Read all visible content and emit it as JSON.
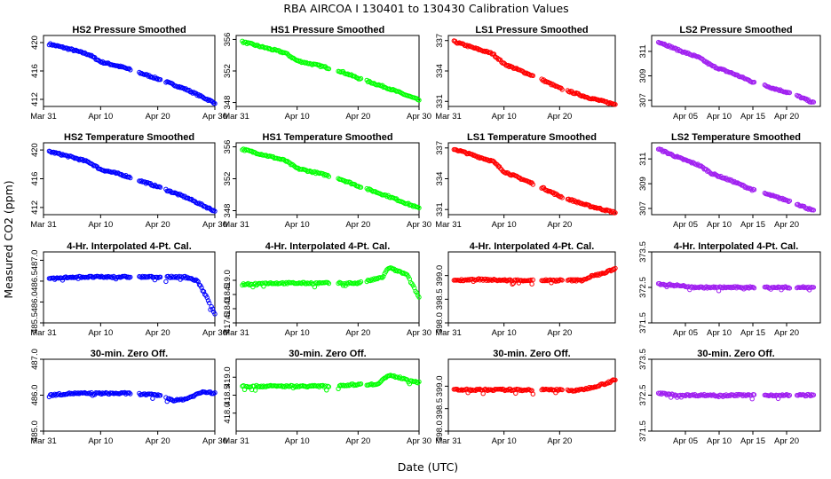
{
  "figure": {
    "title": "RBA   AIRCOA I   130401 to 130430   Calibration Values",
    "xlabel": "Date (UTC)",
    "ylabel": "Measured CO2 (ppm)"
  },
  "chart_data": [
    {
      "type": "scatter",
      "title": "HS2 Pressure Smoothed",
      "color": "#0000ff",
      "marker": "open-circle",
      "xlim": [
        "2013-03-31",
        "2013-04-30"
      ],
      "xticks": [
        "Mar 31",
        "Apr 10",
        "Apr 20",
        "Apr 30"
      ],
      "ylim": [
        411,
        421
      ],
      "yticks": [
        "412",
        "416",
        "420"
      ],
      "series": [
        {
          "x": [
            "2013-04-01",
            "2013-04-05",
            "2013-04-08",
            "2013-04-10",
            "2013-04-14",
            "2013-04-17",
            "2013-04-20",
            "2013-04-25",
            "2013-04-30"
          ],
          "y": [
            419.8,
            419.0,
            418.3,
            417.3,
            416.5,
            415.7,
            414.9,
            413.4,
            411.5
          ]
        }
      ]
    },
    {
      "type": "scatter",
      "title": "HS1 Pressure Smoothed",
      "color": "#00ff00",
      "marker": "open-circle",
      "xlim": [
        "2013-03-31",
        "2013-04-30"
      ],
      "xticks": [
        "Mar 31",
        "Apr 10",
        "Apr 20",
        "Apr 30"
      ],
      "ylim": [
        347.5,
        356.5
      ],
      "yticks": [
        "348",
        "352",
        "356"
      ],
      "series": [
        {
          "x": [
            "2013-04-01",
            "2013-04-05",
            "2013-04-08",
            "2013-04-10",
            "2013-04-14",
            "2013-04-17",
            "2013-04-20",
            "2013-04-25",
            "2013-04-30"
          ],
          "y": [
            355.7,
            354.9,
            354.3,
            353.3,
            352.6,
            352.0,
            351.1,
            349.8,
            348.3
          ]
        }
      ]
    },
    {
      "type": "scatter",
      "title": "LS1 Pressure Smoothed",
      "color": "#ff0000",
      "marker": "open-circle",
      "xlim": [
        "2013-03-31",
        "2013-04-30"
      ],
      "xticks": [
        "Mar 31",
        "Apr 10",
        "Apr 20"
      ],
      "ylim": [
        330.5,
        337.5
      ],
      "yticks": [
        "331",
        "334",
        "337"
      ],
      "series": [
        {
          "x": [
            "2013-04-01",
            "2013-04-05",
            "2013-04-08",
            "2013-04-10",
            "2013-04-14",
            "2013-04-17",
            "2013-04-20",
            "2013-04-25",
            "2013-04-30"
          ],
          "y": [
            336.9,
            336.2,
            335.7,
            334.7,
            333.8,
            333.1,
            332.3,
            331.4,
            330.7
          ]
        }
      ]
    },
    {
      "type": "scatter",
      "title": "LS2 Pressure Smoothed",
      "color": "#a020f0",
      "marker": "open-circle",
      "xlim": [
        "2013-03-31",
        "2013-04-25"
      ],
      "xticks": [
        "Apr 05",
        "Apr 10",
        "Apr 15",
        "Apr 20"
      ],
      "ylim": [
        306.5,
        312.3
      ],
      "yticks": [
        "307",
        "309",
        "311"
      ],
      "series": [
        {
          "x": [
            "2013-04-01",
            "2013-04-04",
            "2013-04-07",
            "2013-04-09",
            "2013-04-12",
            "2013-04-15",
            "2013-04-18",
            "2013-04-21",
            "2013-04-24"
          ],
          "y": [
            311.8,
            311.1,
            310.5,
            309.8,
            309.2,
            308.5,
            308.0,
            307.5,
            306.8
          ]
        }
      ]
    },
    {
      "type": "scatter",
      "title": "HS2 Temperature Smoothed",
      "color": "#0000ff",
      "marker": "open-circle",
      "xlim": [
        "2013-03-31",
        "2013-04-30"
      ],
      "xticks": [
        "Mar 31",
        "Apr 10",
        "Apr 20",
        "Apr 30"
      ],
      "ylim": [
        411,
        421
      ],
      "yticks": [
        "412",
        "416",
        "420"
      ],
      "series": [
        {
          "x": [
            "2013-04-01",
            "2013-04-05",
            "2013-04-08",
            "2013-04-10",
            "2013-04-14",
            "2013-04-17",
            "2013-04-20",
            "2013-04-25",
            "2013-04-30"
          ],
          "y": [
            419.8,
            419.0,
            418.3,
            417.3,
            416.5,
            415.7,
            414.9,
            413.4,
            411.5
          ]
        }
      ]
    },
    {
      "type": "scatter",
      "title": "HS1 Temperature Smoothed",
      "color": "#00ff00",
      "marker": "open-circle",
      "xlim": [
        "2013-03-31",
        "2013-04-30"
      ],
      "xticks": [
        "Mar 31",
        "Apr 10",
        "Apr 20",
        "Apr 30"
      ],
      "ylim": [
        347.5,
        356.5
      ],
      "yticks": [
        "348",
        "352",
        "356"
      ],
      "series": [
        {
          "x": [
            "2013-04-01",
            "2013-04-05",
            "2013-04-08",
            "2013-04-10",
            "2013-04-14",
            "2013-04-17",
            "2013-04-20",
            "2013-04-25",
            "2013-04-30"
          ],
          "y": [
            355.7,
            354.9,
            354.3,
            353.3,
            352.6,
            352.0,
            351.1,
            349.8,
            348.3
          ]
        }
      ]
    },
    {
      "type": "scatter",
      "title": "LS1 Temperature Smoothed",
      "color": "#ff0000",
      "marker": "open-circle",
      "xlim": [
        "2013-03-31",
        "2013-04-30"
      ],
      "xticks": [
        "Mar 31",
        "Apr 10",
        "Apr 20"
      ],
      "ylim": [
        330.5,
        337.5
      ],
      "yticks": [
        "331",
        "334",
        "337"
      ],
      "series": [
        {
          "x": [
            "2013-04-01",
            "2013-04-05",
            "2013-04-08",
            "2013-04-10",
            "2013-04-14",
            "2013-04-17",
            "2013-04-20",
            "2013-04-25",
            "2013-04-30"
          ],
          "y": [
            336.9,
            336.2,
            335.7,
            334.7,
            333.8,
            333.1,
            332.3,
            331.4,
            330.7
          ]
        }
      ]
    },
    {
      "type": "scatter",
      "title": "LS2 Temperature Smoothed",
      "color": "#a020f0",
      "marker": "open-circle",
      "xlim": [
        "2013-03-31",
        "2013-04-25"
      ],
      "xticks": [
        "Apr 05",
        "Apr 10",
        "Apr 15",
        "Apr 20"
      ],
      "ylim": [
        306.5,
        312.3
      ],
      "yticks": [
        "307",
        "309",
        "311"
      ],
      "series": [
        {
          "x": [
            "2013-04-01",
            "2013-04-04",
            "2013-04-07",
            "2013-04-09",
            "2013-04-12",
            "2013-04-15",
            "2013-04-18",
            "2013-04-21",
            "2013-04-24"
          ],
          "y": [
            311.8,
            311.1,
            310.5,
            309.8,
            309.2,
            308.5,
            308.0,
            307.5,
            306.8
          ]
        }
      ]
    },
    {
      "type": "scatter",
      "title": "4-Hr. Interpolated 4-Pt. Cal.",
      "color": "#0000ff",
      "marker": "open-circle",
      "xlim": [
        "2013-03-31",
        "2013-04-30"
      ],
      "xticks": [
        "Mar 31",
        "Apr 10",
        "Apr 20",
        "Apr 30"
      ],
      "ylim": [
        485.5,
        487.2
      ],
      "yticks": [
        "485.5",
        "486.0",
        "486.5",
        "487.0"
      ],
      "series": [
        {
          "x": [
            "2013-04-01",
            "2013-04-05",
            "2013-04-10",
            "2013-04-15",
            "2013-04-20",
            "2013-04-25",
            "2013-04-27",
            "2013-04-29",
            "2013-04-30"
          ],
          "y": [
            486.55,
            486.6,
            486.6,
            486.6,
            486.6,
            486.6,
            486.5,
            486.0,
            485.7
          ]
        }
      ]
    },
    {
      "type": "scatter",
      "title": "4-Hr. Interpolated 4-Pt. Cal.",
      "color": "#00ff00",
      "marker": "open-circle",
      "xlim": [
        "2013-03-31",
        "2013-04-30"
      ],
      "xticks": [
        "Mar 31",
        "Apr 10",
        "Apr 20",
        "Apr 30"
      ],
      "ylim": [
        417.5,
        420.0
      ],
      "yticks": [
        "417.5",
        "418.0",
        "418.5",
        "419.0"
      ],
      "series": [
        {
          "x": [
            "2013-04-01",
            "2013-04-05",
            "2013-04-10",
            "2013-04-15",
            "2013-04-20",
            "2013-04-24",
            "2013-04-25",
            "2013-04-28",
            "2013-04-30"
          ],
          "y": [
            418.85,
            418.9,
            418.9,
            418.9,
            418.9,
            419.1,
            419.45,
            419.2,
            418.4
          ]
        }
      ]
    },
    {
      "type": "scatter",
      "title": "4-Hr. Interpolated 4-Pt. Cal.",
      "color": "#ff0000",
      "marker": "open-circle",
      "xlim": [
        "2013-03-31",
        "2013-04-30"
      ],
      "xticks": [
        "Mar 31",
        "Apr 10",
        "Apr 20"
      ],
      "ylim": [
        398.0,
        399.5
      ],
      "yticks": [
        "398.0",
        "398.5",
        "399.0"
      ],
      "series": [
        {
          "x": [
            "2013-04-01",
            "2013-04-05",
            "2013-04-10",
            "2013-04-15",
            "2013-04-20",
            "2013-04-24",
            "2013-04-26",
            "2013-04-28",
            "2013-04-30"
          ],
          "y": [
            398.9,
            398.92,
            398.9,
            398.9,
            398.9,
            398.9,
            399.0,
            399.05,
            399.15
          ]
        }
      ]
    },
    {
      "type": "scatter",
      "title": "4-Hr. Interpolated 4-Pt. Cal.",
      "color": "#a020f0",
      "marker": "open-circle",
      "xlim": [
        "2013-03-31",
        "2013-04-25"
      ],
      "xticks": [
        "Apr 05",
        "Apr 10",
        "Apr 15",
        "Apr 20"
      ],
      "ylim": [
        371.5,
        373.5
      ],
      "yticks": [
        "371.5",
        "372.5",
        "373.5"
      ],
      "series": [
        {
          "x": [
            "2013-04-01",
            "2013-04-04",
            "2013-04-07",
            "2013-04-10",
            "2013-04-13",
            "2013-04-16",
            "2013-04-19",
            "2013-04-22",
            "2013-04-24"
          ],
          "y": [
            372.6,
            372.55,
            372.5,
            372.5,
            372.5,
            372.5,
            372.5,
            372.5,
            372.5
          ]
        }
      ]
    },
    {
      "type": "scatter",
      "title": "30-min. Zero Off.",
      "color": "#0000ff",
      "marker": "open-circle",
      "xlim": [
        "2013-03-31",
        "2013-04-30"
      ],
      "xticks": [
        "Mar 31",
        "Apr 10",
        "Apr 20",
        "Apr 30"
      ],
      "ylim": [
        485.0,
        487.0
      ],
      "yticks": [
        "485.0",
        "486.0",
        "487.0"
      ],
      "series": [
        {
          "x": [
            "2013-04-01",
            "2013-04-05",
            "2013-04-10",
            "2013-04-15",
            "2013-04-20",
            "2013-04-23",
            "2013-04-25",
            "2013-04-28",
            "2013-04-30"
          ],
          "y": [
            486.0,
            486.05,
            486.05,
            486.05,
            486.0,
            485.85,
            485.9,
            486.1,
            486.05
          ]
        }
      ]
    },
    {
      "type": "scatter",
      "title": "30-min. Zero Off.",
      "color": "#00ff00",
      "marker": "open-circle",
      "xlim": [
        "2013-03-31",
        "2013-04-30"
      ],
      "xticks": [
        "Mar 31",
        "Apr 10",
        "Apr 20",
        "Apr 30"
      ],
      "ylim": [
        417.5,
        419.5
      ],
      "yticks": [
        "418.0",
        "418.5",
        "419.0"
      ],
      "series": [
        {
          "x": [
            "2013-04-01",
            "2013-04-05",
            "2013-04-10",
            "2013-04-15",
            "2013-04-20",
            "2013-04-23",
            "2013-04-25",
            "2013-04-28",
            "2013-04-30"
          ],
          "y": [
            418.75,
            418.75,
            418.75,
            418.75,
            418.8,
            418.8,
            419.05,
            418.95,
            418.85
          ]
        }
      ]
    },
    {
      "type": "scatter",
      "title": "30-min. Zero Off.",
      "color": "#ff0000",
      "marker": "open-circle",
      "xlim": [
        "2013-03-31",
        "2013-04-30"
      ],
      "xticks": [
        "Mar 31",
        "Apr 10",
        "Apr 20"
      ],
      "ylim": [
        398.0,
        399.6
      ],
      "yticks": [
        "398.0",
        "398.5",
        "399.0"
      ],
      "series": [
        {
          "x": [
            "2013-04-01",
            "2013-04-05",
            "2013-04-10",
            "2013-04-15",
            "2013-04-20",
            "2013-04-23",
            "2013-04-25",
            "2013-04-28",
            "2013-04-30"
          ],
          "y": [
            398.92,
            398.92,
            398.92,
            398.92,
            398.92,
            398.9,
            398.95,
            399.05,
            399.15
          ]
        }
      ]
    },
    {
      "type": "scatter",
      "title": "30-min. Zero Off.",
      "color": "#a020f0",
      "marker": "open-circle",
      "xlim": [
        "2013-03-31",
        "2013-04-25"
      ],
      "xticks": [
        "Apr 05",
        "Apr 10",
        "Apr 15",
        "Apr 20"
      ],
      "ylim": [
        371.5,
        373.5
      ],
      "yticks": [
        "371.5",
        "372.5",
        "373.5"
      ],
      "series": [
        {
          "x": [
            "2013-04-01",
            "2013-04-04",
            "2013-04-07",
            "2013-04-10",
            "2013-04-13",
            "2013-04-16",
            "2013-04-19",
            "2013-04-22",
            "2013-04-24"
          ],
          "y": [
            372.55,
            372.5,
            372.5,
            372.5,
            372.5,
            372.5,
            372.5,
            372.5,
            372.5
          ]
        }
      ]
    }
  ]
}
